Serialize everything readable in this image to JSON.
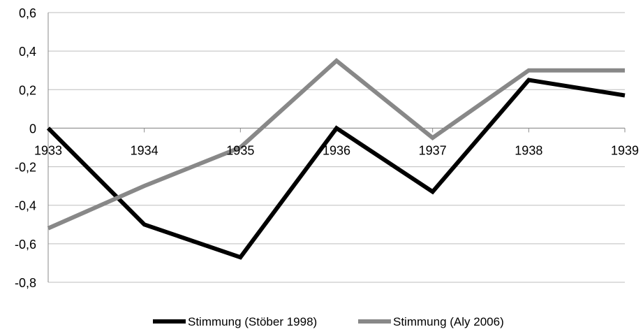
{
  "chart_data": {
    "type": "line",
    "x": [
      "1933",
      "1934",
      "1935",
      "1936",
      "1937",
      "1938",
      "1939"
    ],
    "ylim": [
      -0.8,
      0.6
    ],
    "yticks": [
      0.6,
      0.4,
      0.2,
      0,
      -0.2,
      -0.4,
      -0.6,
      -0.8
    ],
    "ytick_labels": [
      "0,6",
      "0,4",
      "0,2",
      "0",
      "-0,2",
      "-0,4",
      "-0,6",
      "-0,8"
    ],
    "grid": true,
    "legend_position": "bottom",
    "series": [
      {
        "name": "Stimmung (Stöber 1998)",
        "color": "#000000",
        "values": [
          0,
          -0.5,
          -0.67,
          0,
          -0.33,
          0.25,
          0.17
        ]
      },
      {
        "name": "Stimmung (Aly 2006)",
        "color": "#888888",
        "values": [
          -0.52,
          -0.3,
          -0.1,
          0.35,
          -0.05,
          0.3,
          0.3
        ]
      }
    ]
  }
}
